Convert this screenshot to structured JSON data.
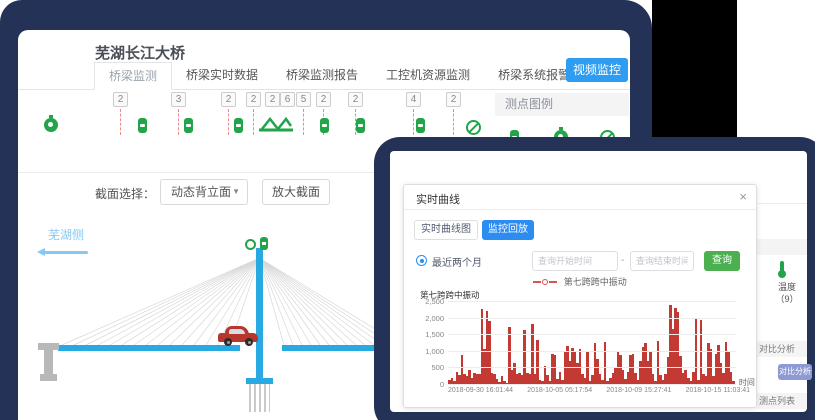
{
  "app": {
    "title": "芜湖长江大桥",
    "tabs": [
      {
        "label": "桥梁监测",
        "active": true
      },
      {
        "label": "桥梁实时数据",
        "active": false
      },
      {
        "label": "桥梁监测报告",
        "active": false
      },
      {
        "label": "工控机资源监测",
        "active": false
      },
      {
        "label": "桥梁系统报警",
        "active": false
      }
    ],
    "video_button": "视频监控"
  },
  "sensor_row": {
    "badges": [
      "2",
      "3",
      "2",
      "2",
      "2",
      "6",
      "5",
      "2",
      "2",
      "4",
      "2"
    ]
  },
  "legend_panel": {
    "title": "测点图例"
  },
  "section_bar": {
    "label": "截面选择：",
    "dropdown_value": "动态背立面",
    "zoom_button": "放大截面"
  },
  "bridge": {
    "side_label": "芜湖侧"
  },
  "right_panel": {
    "temperature_label": "温度",
    "temperature_count": "（9）",
    "compare_header": "对比分析",
    "compare_button": "对比分析",
    "list_header": "测点列表"
  },
  "modal": {
    "title": "实时曲线",
    "tabs": [
      "实时曲线图",
      "监控回放"
    ],
    "radio_label": "最近两个月",
    "start_placeholder": "查询开始时间",
    "range_separator": "-",
    "end_placeholder": "查询结束时间",
    "query_button": "查询",
    "legend": "第七跨跨中振动"
  },
  "icons": {
    "close": "×",
    "dropdown_caret": "▼"
  },
  "colors": {
    "navy": "#253258",
    "accent_blue": "#2e9cf0",
    "modal_blue": "#2d8cf0",
    "green": "#21a44a",
    "query_green": "#4cb050",
    "deck_blue": "#29a9e1",
    "chart_red": "#c23a33",
    "muted_button_blue": "#8f9ad2"
  },
  "chart_data": {
    "type": "bar",
    "title": "第七跨跨中振动",
    "ylabel": "第七跨跨中振动",
    "xlabel": "时间",
    "ylim": [
      0,
      2500
    ],
    "grid": true,
    "legend_position": "top",
    "yticks": [
      "2,500",
      "2,000",
      "1,500",
      "1,000",
      "500",
      "0"
    ],
    "xticks": [
      "2018-09-30 16:01:44",
      "2018-10-05 05:17:54",
      "2018-10-09 15:27:41",
      "2018-10-15 11:03:41"
    ],
    "series": [
      {
        "name": "第七跨跨中振动",
        "color": "#c23a33",
        "values": [
          120,
          180,
          90,
          350,
          260,
          880,
          310,
          240,
          420,
          180,
          320,
          300,
          310,
          2250,
          1050,
          2200,
          1900,
          320,
          300,
          150,
          60,
          230,
          90,
          40,
          1730,
          430,
          620,
          310,
          330,
          280,
          1620,
          340,
          310,
          1810,
          300,
          1320,
          120,
          90,
          530,
          260,
          80,
          900,
          870,
          150,
          350,
          120,
          1000,
          1160,
          700,
          1080,
          980,
          640,
          1060,
          300,
          180,
          980,
          90,
          260,
          1230,
          760,
          300,
          130,
          1270,
          90,
          190,
          340,
          500,
          960,
          880,
          420,
          150,
          350,
          860,
          900,
          330,
          120,
          700,
          1100,
          1230,
          680,
          960,
          300,
          90,
          1290,
          260,
          130,
          310,
          820,
          2380,
          1650,
          2300,
          2160,
          840,
          330,
          420,
          180,
          90,
          350,
          2000,
          130,
          1940,
          300,
          240,
          1250,
          1060,
          240,
          900,
          1180,
          640,
          330,
          1280,
          960,
          350,
          90
        ]
      }
    ]
  }
}
